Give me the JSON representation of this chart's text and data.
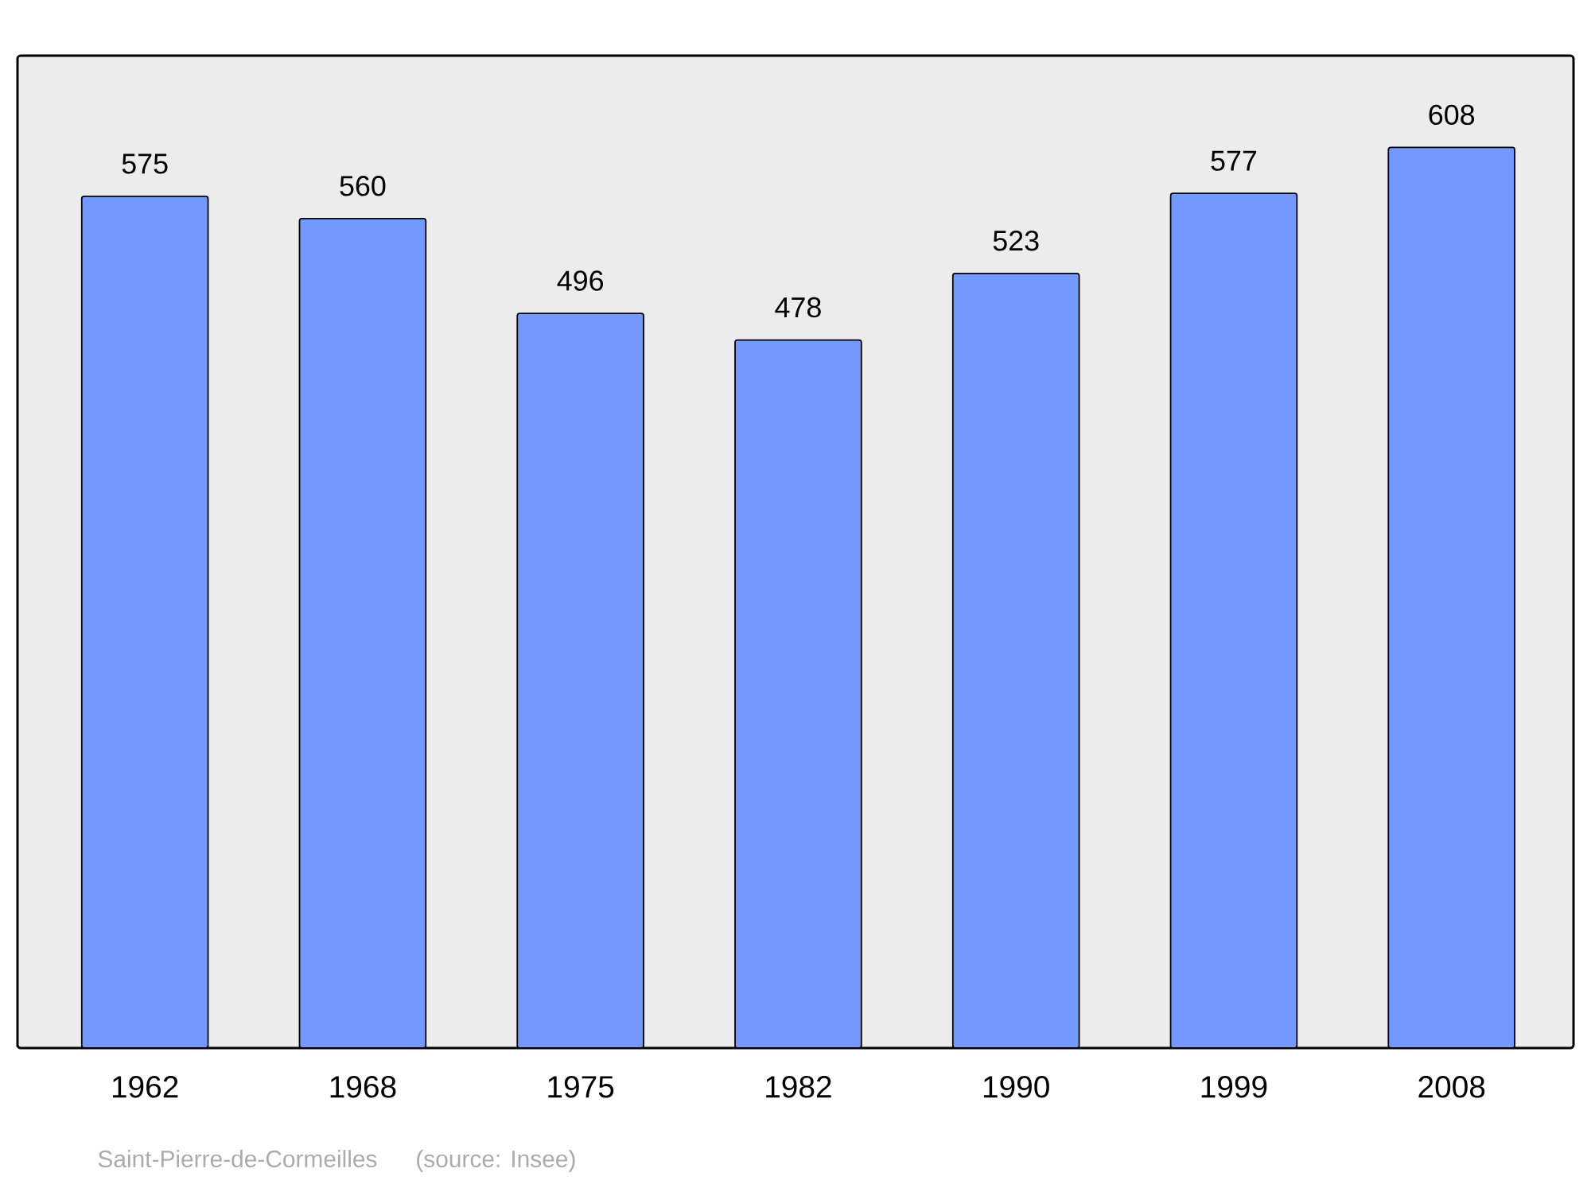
{
  "chart_data": {
    "type": "bar",
    "categories": [
      "1962",
      "1968",
      "1975",
      "1982",
      "1990",
      "1999",
      "2008"
    ],
    "values": [
      575,
      560,
      496,
      478,
      523,
      577,
      608
    ],
    "color": "#7399ff",
    "ylim": [
      0,
      670
    ],
    "data_labels": true,
    "annotations": [
      "Saint-Pierre-de-Cormeilles",
      "(source: Insee)"
    ]
  }
}
